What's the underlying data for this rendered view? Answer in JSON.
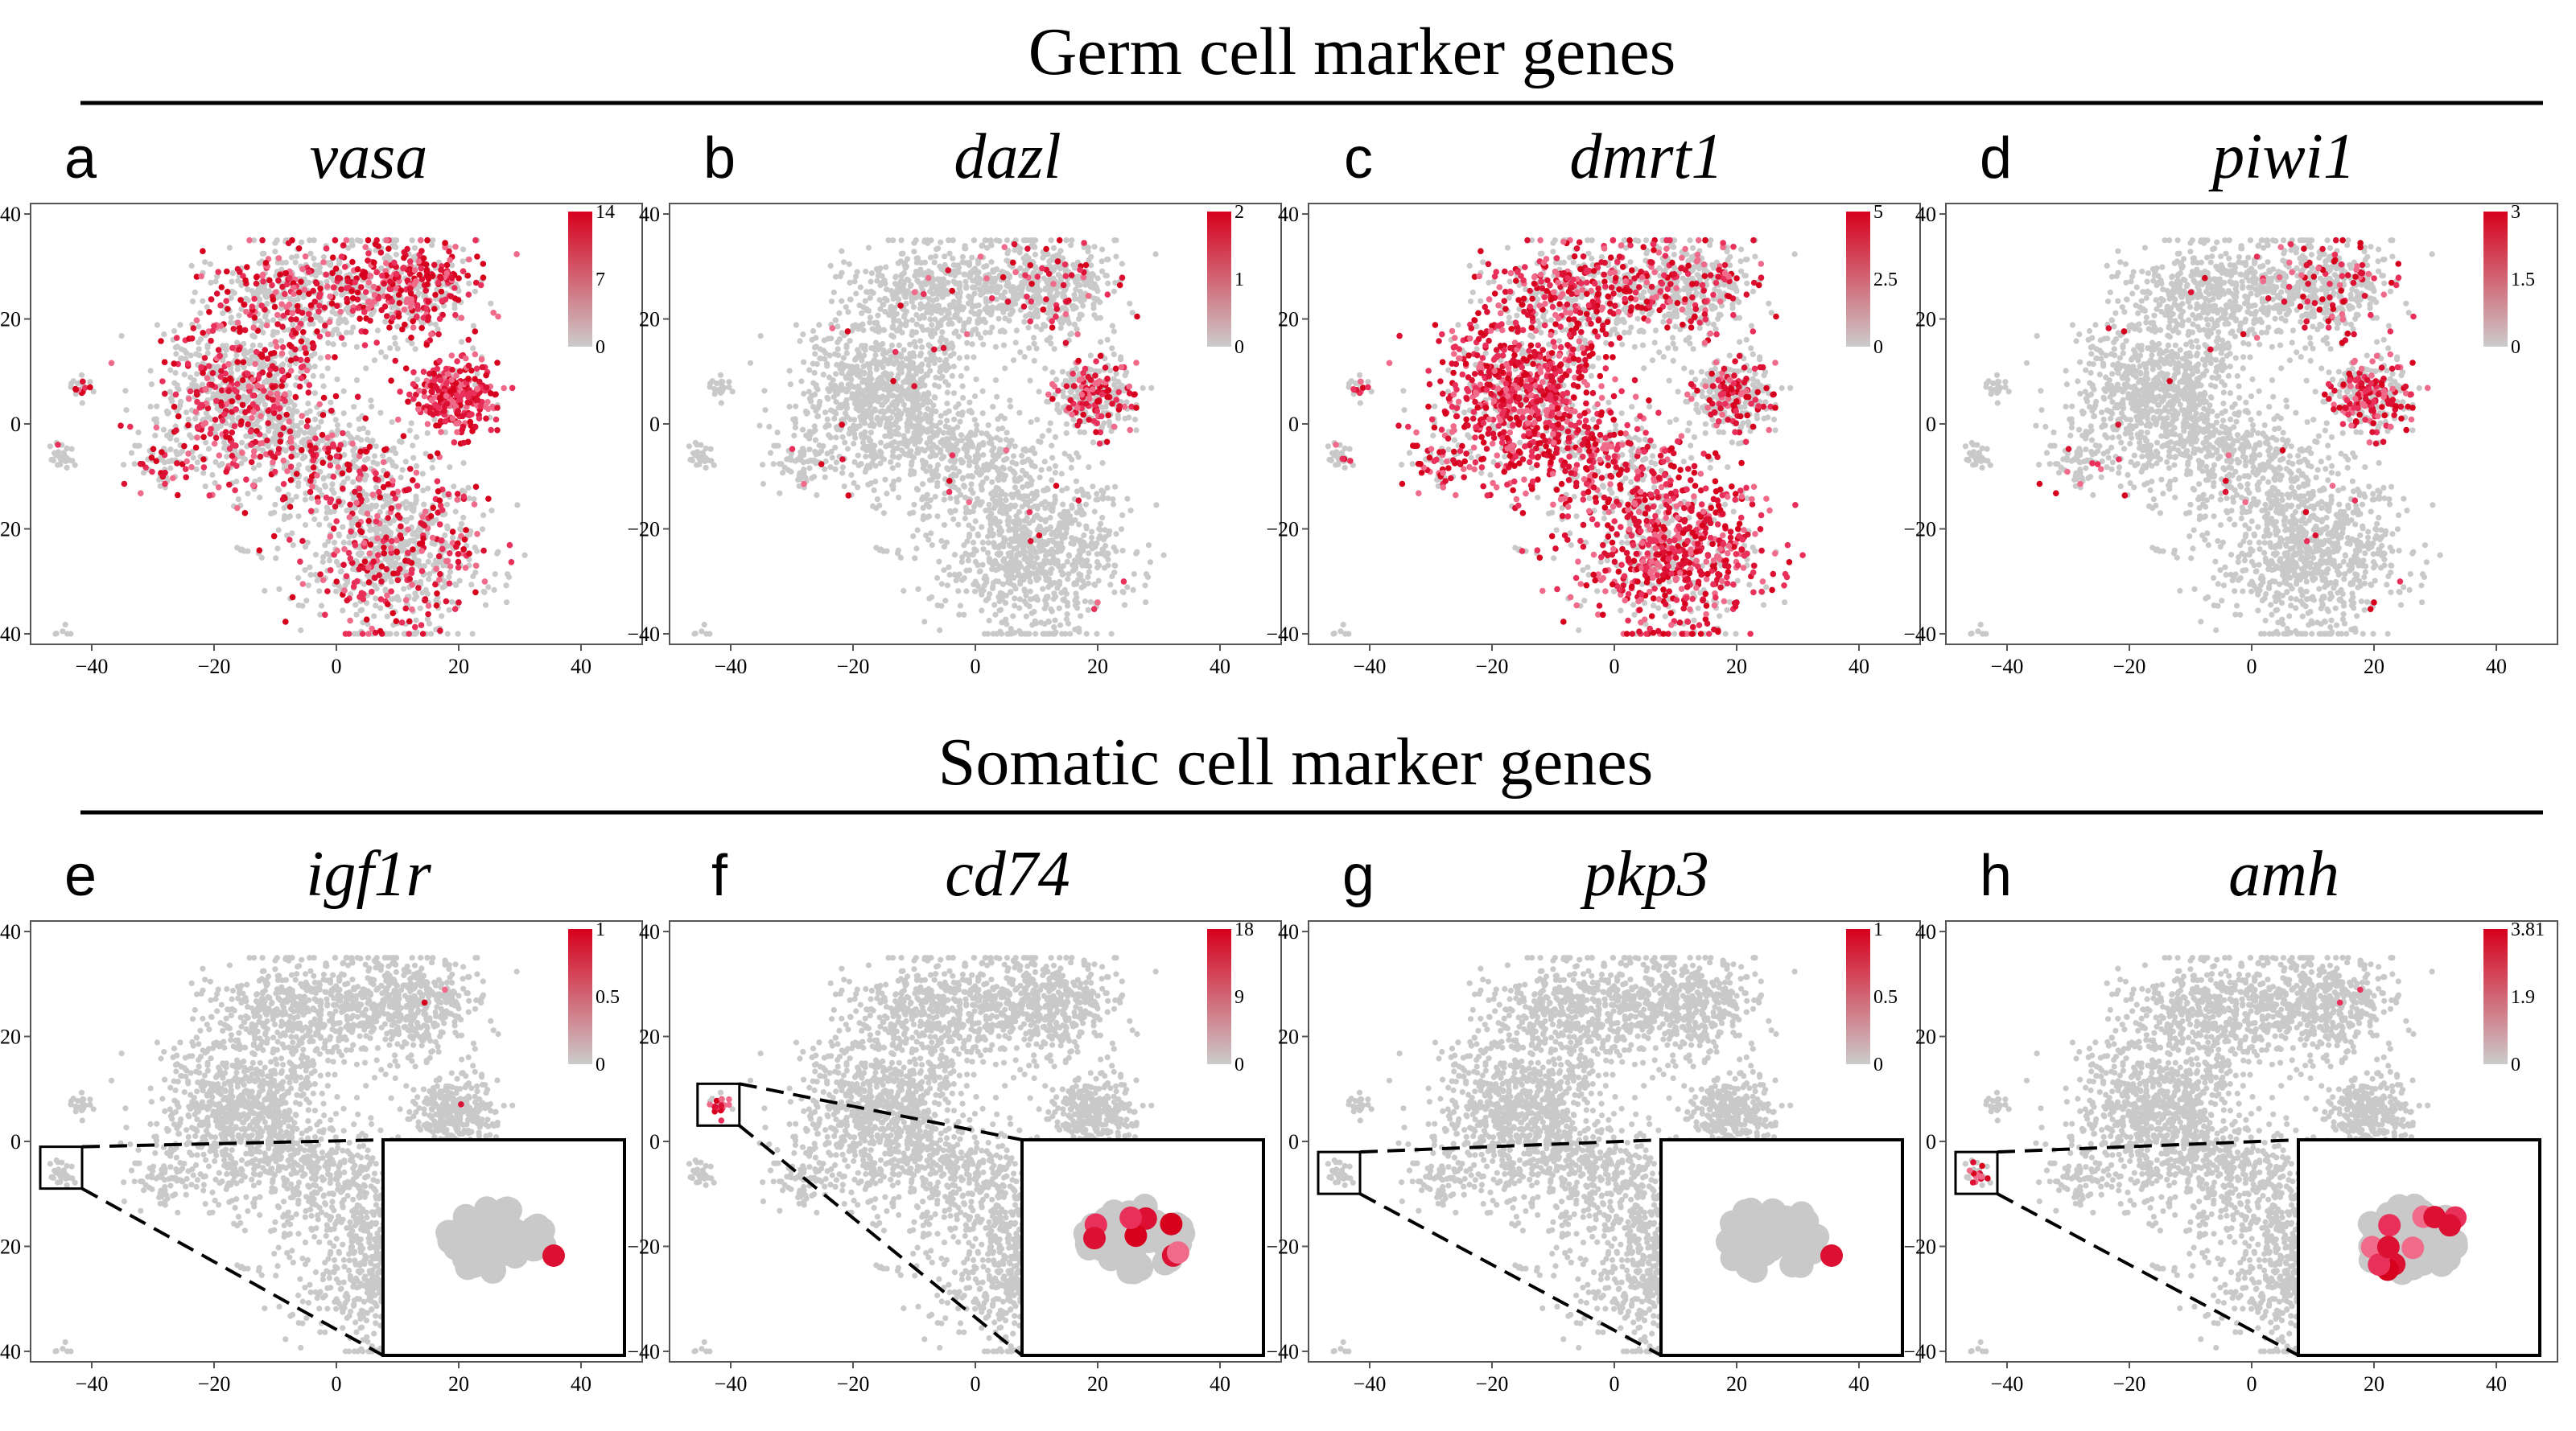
{
  "figure": {
    "sections": [
      {
        "title": "Germ cell marker genes"
      },
      {
        "title": "Somatic cell marker genes"
      }
    ]
  },
  "chart_data": [
    {
      "type": "scatter",
      "panel_label": "a",
      "title": "vasa",
      "xlim": [
        -50,
        50
      ],
      "ylim": [
        -42,
        42
      ],
      "xticks": [
        -40,
        -20,
        0,
        20,
        40
      ],
      "yticks": [
        -40,
        -20,
        0,
        20,
        40
      ],
      "colorbar": {
        "ticks": [
          "0",
          "7",
          "14"
        ],
        "low_color": "#cccccc",
        "high_color": "#d7001d"
      },
      "expression_pattern": "broad low-level expression across most cells; strongest in the cluster near x 10 to 25, y -10 to 10",
      "inset": null
    },
    {
      "type": "scatter",
      "panel_label": "b",
      "title": "dazl",
      "xlim": [
        -50,
        50
      ],
      "ylim": [
        -42,
        42
      ],
      "xticks": [
        -40,
        -20,
        0,
        20,
        40
      ],
      "yticks": [
        -40,
        -20,
        0,
        20,
        40
      ],
      "colorbar": {
        "ticks": [
          "0",
          "1",
          "2"
        ],
        "low_color": "#cccccc",
        "high_color": "#d7001d"
      },
      "expression_pattern": "sparse; concentrated in the right cluster and top arc",
      "inset": null
    },
    {
      "type": "scatter",
      "panel_label": "c",
      "title": "dmrt1",
      "xlim": [
        -50,
        50
      ],
      "ylim": [
        -42,
        42
      ],
      "xticks": [
        -40,
        -20,
        0,
        20,
        40
      ],
      "yticks": [
        -40,
        -20,
        0,
        20,
        40
      ],
      "colorbar": {
        "ticks": [
          "0",
          "2.5",
          "5"
        ],
        "low_color": "#cccccc",
        "high_color": "#d7001d"
      },
      "expression_pattern": "widespread high expression in the left lobe and the bottom lobe",
      "inset": null
    },
    {
      "type": "scatter",
      "panel_label": "d",
      "title": "piwi1",
      "xlim": [
        -50,
        50
      ],
      "ylim": [
        -42,
        42
      ],
      "xticks": [
        -40,
        -20,
        0,
        20,
        40
      ],
      "yticks": [
        -40,
        -20,
        0,
        20,
        40
      ],
      "colorbar": {
        "ticks": [
          "0",
          "1.5",
          "3"
        ],
        "low_color": "#cccccc",
        "high_color": "#d7001d"
      },
      "expression_pattern": "sparse; mostly in the right cluster and top arc",
      "inset": null
    },
    {
      "type": "scatter",
      "panel_label": "e",
      "title": "igf1r",
      "xlim": [
        -50,
        50
      ],
      "ylim": [
        -42,
        42
      ],
      "xticks": [
        -40,
        -20,
        0,
        20,
        40
      ],
      "yticks": [
        -40,
        -20,
        0,
        20,
        40
      ],
      "colorbar": {
        "ticks": [
          "0",
          "0.5",
          "1"
        ],
        "low_color": "#cccccc",
        "high_color": "#d7001d"
      },
      "expression_pattern": "almost absent; a single positive cell in the small cluster near (-45, -5)",
      "inset": {
        "box_center": [
          -45,
          -5
        ],
        "positive_cells": 1
      }
    },
    {
      "type": "scatter",
      "panel_label": "f",
      "title": "cd74",
      "xlim": [
        -50,
        50
      ],
      "ylim": [
        -42,
        42
      ],
      "xticks": [
        -40,
        -20,
        0,
        20,
        40
      ],
      "yticks": [
        -40,
        -20,
        0,
        20,
        40
      ],
      "colorbar": {
        "ticks": [
          "0",
          "9",
          "18"
        ],
        "low_color": "#cccccc",
        "high_color": "#d7001d"
      },
      "expression_pattern": "restricted to the small cluster near (-42, 7)",
      "inset": {
        "box_center": [
          -42,
          7
        ],
        "positive_cells": 8
      }
    },
    {
      "type": "scatter",
      "panel_label": "g",
      "title": "pkp3",
      "xlim": [
        -50,
        50
      ],
      "ylim": [
        -42,
        42
      ],
      "xticks": [
        -40,
        -20,
        0,
        20,
        40
      ],
      "yticks": [
        -40,
        -20,
        0,
        20,
        40
      ],
      "colorbar": {
        "ticks": [
          "0",
          "0.5",
          "1"
        ],
        "low_color": "#cccccc",
        "high_color": "#d7001d"
      },
      "expression_pattern": "a single positive cell in the small cluster near (-45, -6)",
      "inset": {
        "box_center": [
          -45,
          -6
        ],
        "positive_cells": 1
      }
    },
    {
      "type": "scatter",
      "panel_label": "h",
      "title": "amh",
      "xlim": [
        -50,
        50
      ],
      "ylim": [
        -42,
        42
      ],
      "xticks": [
        -40,
        -20,
        0,
        20,
        40
      ],
      "yticks": [
        -40,
        -20,
        0,
        20,
        40
      ],
      "colorbar": {
        "ticks": [
          "0",
          "1.9",
          "3.81"
        ],
        "low_color": "#cccccc",
        "high_color": "#d7001d"
      },
      "expression_pattern": "restricted to the small cluster near (-45, -6)",
      "inset": {
        "box_center": [
          -45,
          -6
        ],
        "positive_cells": 12
      }
    }
  ]
}
